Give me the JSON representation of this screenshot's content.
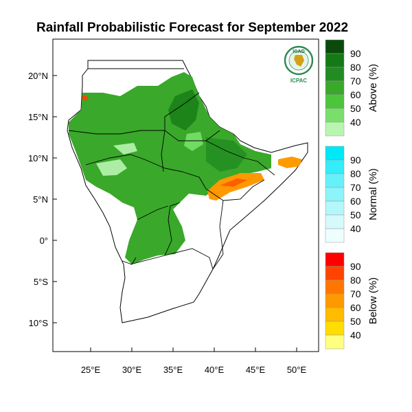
{
  "title": "Rainfall Probabilistic Forecast for September 2022",
  "logo": {
    "top_text": "IGAD",
    "bottom_text": "ICPAC"
  },
  "axes": {
    "lon_ticks": [
      "25°E",
      "30°E",
      "35°E",
      "40°E",
      "45°E",
      "50°E"
    ],
    "lat_ticks": [
      "20°N",
      "15°N",
      "10°N",
      "5°N",
      "0°",
      "5°S",
      "10°S"
    ],
    "lon_range": [
      21,
      52
    ],
    "lat_range": [
      -13.5,
      24.5
    ]
  },
  "colorbars": [
    {
      "name": "Above (%)",
      "labels": [
        "90",
        "80",
        "70",
        "60",
        "50",
        "40"
      ],
      "colors": [
        "#0a4a0a",
        "#157a15",
        "#228b22",
        "#3aa82a",
        "#4cc43c",
        "#78e06a",
        "#b8f5b0"
      ]
    },
    {
      "name": "Normal (%)",
      "labels": [
        "90",
        "80",
        "70",
        "60",
        "50",
        "40"
      ],
      "colors": [
        "#00e8f5",
        "#33edf8",
        "#66f1f8",
        "#8cf4fa",
        "#b3f7fb",
        "#d6fafc",
        "#eefdfe"
      ]
    },
    {
      "name": "Below (%)",
      "labels": [
        "90",
        "80",
        "70",
        "60",
        "50",
        "40"
      ],
      "colors": [
        "#ff0000",
        "#ff4400",
        "#ff7700",
        "#ff9900",
        "#ffbb00",
        "#ffdd00",
        "#ffff80"
      ]
    }
  ]
}
